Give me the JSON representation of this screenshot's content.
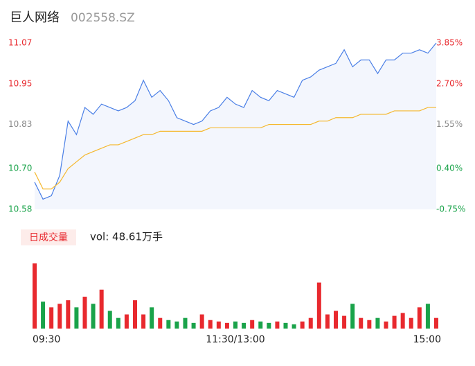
{
  "header": {
    "name": "巨人网络",
    "code": "002558.SZ"
  },
  "chart_data": {
    "type": "line",
    "ylim": [
      10.58,
      11.07
    ],
    "yticks": [
      {
        "value": 11.07,
        "label": "11.07"
      },
      {
        "value": 10.95,
        "label": "10.95"
      },
      {
        "value": 10.83,
        "label": "10.83"
      },
      {
        "value": 10.7,
        "label": "10.70"
      },
      {
        "value": 10.58,
        "label": "10.58"
      }
    ],
    "y2ticks": [
      "3.85%",
      "2.70%",
      "1.55%",
      "0.40%",
      "-0.75%"
    ],
    "tick_colors": [
      "#e8292e",
      "#e8292e",
      "#888888",
      "#1aa34a",
      "#1aa34a"
    ],
    "xticks": [
      {
        "value": 0,
        "label": "09:30"
      },
      {
        "value": 24,
        "label": "11:30/13:00"
      },
      {
        "value": 48,
        "label": "15:00"
      }
    ],
    "xlim": [
      0,
      48
    ],
    "series": [
      {
        "name": "price",
        "color": "#4a7fe6",
        "values": [
          10.66,
          10.61,
          10.62,
          10.68,
          10.84,
          10.8,
          10.88,
          10.86,
          10.89,
          10.88,
          10.87,
          10.88,
          10.9,
          10.96,
          10.91,
          10.93,
          10.9,
          10.85,
          10.84,
          10.83,
          10.84,
          10.87,
          10.88,
          10.91,
          10.89,
          10.88,
          10.93,
          10.91,
          10.9,
          10.93,
          10.92,
          10.91,
          10.96,
          10.97,
          10.99,
          11.0,
          11.01,
          11.05,
          11.0,
          11.02,
          11.02,
          10.98,
          11.02,
          11.02,
          11.04,
          11.04,
          11.05,
          11.04,
          11.07
        ]
      },
      {
        "name": "average",
        "color": "#f5b82e",
        "values": [
          10.69,
          10.64,
          10.64,
          10.66,
          10.7,
          10.72,
          10.74,
          10.75,
          10.76,
          10.77,
          10.77,
          10.78,
          10.79,
          10.8,
          10.8,
          10.81,
          10.81,
          10.81,
          10.81,
          10.81,
          10.81,
          10.82,
          10.82,
          10.82,
          10.82,
          10.82,
          10.82,
          10.82,
          10.83,
          10.83,
          10.83,
          10.83,
          10.83,
          10.83,
          10.84,
          10.84,
          10.85,
          10.85,
          10.85,
          10.86,
          10.86,
          10.86,
          10.86,
          10.87,
          10.87,
          10.87,
          10.87,
          10.88,
          10.88
        ]
      }
    ],
    "volume": {
      "label": "日成交量",
      "summary": "vol: 48.61万手",
      "up_color": "#e8292e",
      "down_color": "#1aa34a",
      "values": [
        92,
        38,
        30,
        35,
        40,
        30,
        45,
        35,
        55,
        25,
        15,
        20,
        40,
        20,
        30,
        15,
        12,
        10,
        15,
        8,
        20,
        12,
        10,
        8,
        10,
        8,
        12,
        10,
        8,
        10,
        8,
        6,
        10,
        15,
        65,
        20,
        25,
        18,
        35,
        15,
        12,
        15,
        10,
        18,
        22,
        15,
        30,
        35,
        15
      ]
    }
  }
}
